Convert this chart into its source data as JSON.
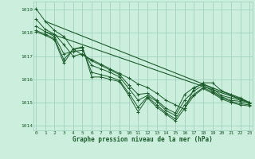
{
  "title": "Graphe pression niveau de la mer (hPa)",
  "bg_color": "#cceedd",
  "grid_color": "#99ccbb",
  "line_color": "#1a5c2a",
  "xlim": [
    -0.3,
    23.3
  ],
  "ylim": [
    1013.8,
    1019.35
  ],
  "yticks": [
    1014,
    1015,
    1016,
    1017,
    1018,
    1019
  ],
  "xticks": [
    0,
    1,
    2,
    3,
    4,
    5,
    6,
    7,
    8,
    9,
    10,
    11,
    12,
    13,
    14,
    15,
    16,
    17,
    18,
    19,
    20,
    21,
    22,
    23
  ],
  "series": [
    [
      1019.05,
      1018.5,
      1018.1,
      1017.85,
      1017.3,
      1017.05,
      1016.85,
      1016.65,
      1016.45,
      1016.25,
      1016.05,
      1015.8,
      1015.65,
      1015.4,
      1015.1,
      1014.9,
      1014.7,
      1015.6,
      1015.85,
      1015.85,
      1015.5,
      1015.35,
      1015.2,
      1015.0
    ],
    [
      1018.6,
      1018.15,
      1017.95,
      1017.5,
      1017.0,
      1017.1,
      1016.8,
      1016.6,
      1016.4,
      1016.2,
      1015.75,
      1015.35,
      1015.4,
      1015.1,
      1014.75,
      1014.55,
      1015.35,
      1015.65,
      1015.8,
      1015.6,
      1015.3,
      1015.2,
      1015.1,
      1015.0
    ],
    [
      1018.3,
      1018.05,
      1017.85,
      1017.1,
      1017.2,
      1017.25,
      1016.6,
      1016.45,
      1016.3,
      1016.1,
      1015.6,
      1015.1,
      1015.3,
      1015.05,
      1014.65,
      1014.45,
      1015.1,
      1015.5,
      1015.75,
      1015.5,
      1015.25,
      1015.1,
      1015.05,
      1014.95
    ],
    [
      1018.1,
      1017.95,
      1017.75,
      1016.85,
      1017.3,
      1017.35,
      1016.3,
      1016.2,
      1016.1,
      1015.95,
      1015.4,
      1014.8,
      1015.25,
      1014.9,
      1014.55,
      1014.3,
      1014.9,
      1015.35,
      1015.65,
      1015.45,
      1015.2,
      1015.05,
      1014.95,
      1014.9
    ],
    [
      1018.05,
      1017.9,
      1017.7,
      1016.7,
      1017.3,
      1017.4,
      1016.1,
      1016.1,
      1016.0,
      1015.9,
      1015.3,
      1014.6,
      1015.2,
      1014.8,
      1014.5,
      1014.2,
      1014.75,
      1015.3,
      1015.6,
      1015.4,
      1015.15,
      1015.0,
      1014.9,
      1014.85
    ]
  ],
  "trend_lines": [
    [
      1,
      1018.05,
      23,
      1015.0
    ],
    [
      1,
      1018.5,
      23,
      1015.0
    ]
  ]
}
